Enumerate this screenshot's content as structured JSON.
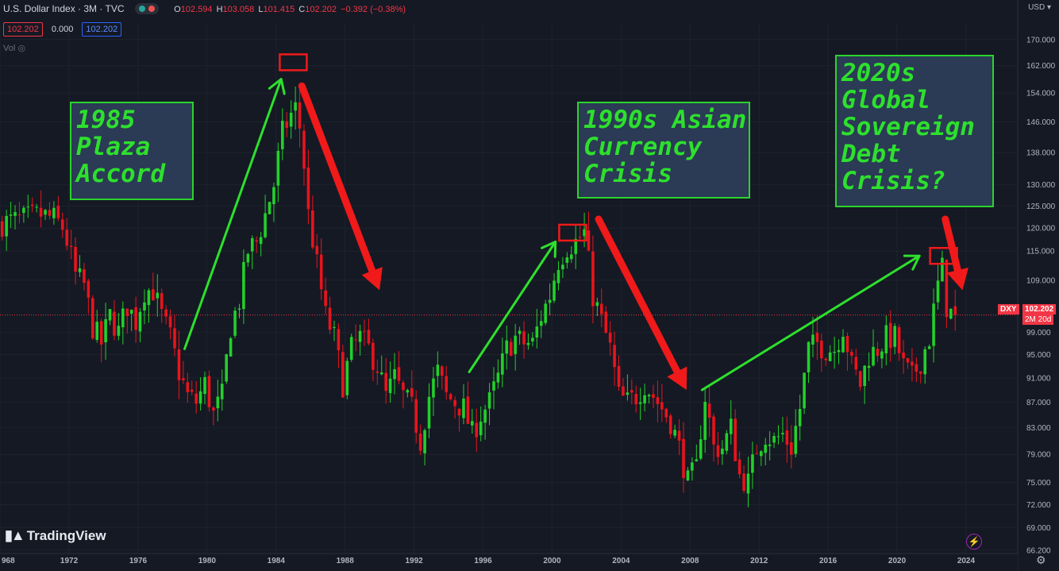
{
  "header": {
    "title": "U.S. Dollar Index · 3M · TVC",
    "ohlc": [
      {
        "k": "O",
        "v": "102.594"
      },
      {
        "k": "H",
        "v": "103.058"
      },
      {
        "k": "L",
        "v": "101.415"
      },
      {
        "k": "C",
        "v": "102.202"
      }
    ],
    "change": "−0.392 (−0.38%)",
    "price_box": "102.202",
    "spread": "0.000",
    "price_box2": "102.202",
    "vol_label": "Vol",
    "currency": "USD"
  },
  "logo": "TradingView",
  "price_badge": {
    "symbol": "DXY",
    "price": "102.202",
    "countdown": "2M 20d"
  },
  "annotations": {
    "plaza": "1985\nPlaza\nAccord",
    "asian": "1990s Asian\nCurrency\nCrisis",
    "debt": "2020s\nGlobal\nSovereign\nDebt\nCrisis?"
  },
  "colors": {
    "up": "#22d02a",
    "down": "#e8141c",
    "background": "#151924",
    "annotation_box": "#2b3a55",
    "annotation_text": "#2de02d"
  },
  "chart_data": {
    "type": "candlestick",
    "title": "U.S. Dollar Index · 3M · TVC",
    "scale": "log",
    "ylim": [
      65.5,
      175
    ],
    "xlim": [
      1968,
      2027
    ],
    "y_ticks": [
      "170.000",
      "162.000",
      "154.000",
      "146.000",
      "138.000",
      "130.000",
      "125.000",
      "120.000",
      "115.000",
      "109.000",
      "99.000",
      "95.000",
      "91.000",
      "87.000",
      "83.000",
      "79.000",
      "75.000",
      "72.000",
      "69.000",
      "66.200"
    ],
    "x_ticks": [
      "968",
      "1972",
      "1976",
      "1980",
      "1984",
      "1988",
      "1992",
      "1996",
      "2000",
      "2004",
      "2008",
      "2012",
      "2016",
      "2020",
      "2024"
    ],
    "anchors": [
      [
        1968.0,
        121
      ],
      [
        1969.5,
        122
      ],
      [
        1970.5,
        123
      ],
      [
        1971.3,
        122
      ],
      [
        1971.8,
        120
      ],
      [
        1972.5,
        110
      ],
      [
        1973.0,
        108
      ],
      [
        1973.5,
        100
      ],
      [
        1974.0,
        97
      ],
      [
        1974.5,
        102
      ],
      [
        1975.0,
        99
      ],
      [
        1975.5,
        104
      ],
      [
        1976.0,
        101
      ],
      [
        1976.5,
        107
      ],
      [
        1977.0,
        107
      ],
      [
        1977.5,
        102
      ],
      [
        1978.0,
        98
      ],
      [
        1978.5,
        92
      ],
      [
        1979.0,
        88
      ],
      [
        1979.5,
        87
      ],
      [
        1980.0,
        90
      ],
      [
        1980.5,
        85
      ],
      [
        1981.0,
        88
      ],
      [
        1981.5,
        100
      ],
      [
        1982.0,
        105
      ],
      [
        1982.5,
        115
      ],
      [
        1983.0,
        117
      ],
      [
        1983.5,
        123
      ],
      [
        1984.0,
        130
      ],
      [
        1984.5,
        143
      ],
      [
        1985.0,
        148
      ],
      [
        1985.3,
        150
      ],
      [
        1985.6,
        142
      ],
      [
        1986.0,
        123
      ],
      [
        1986.5,
        112
      ],
      [
        1987.0,
        102
      ],
      [
        1987.5,
        98
      ],
      [
        1988.0,
        90
      ],
      [
        1988.5,
        96
      ],
      [
        1989.0,
        98
      ],
      [
        1989.5,
        96
      ],
      [
        1990.0,
        93
      ],
      [
        1990.5,
        88
      ],
      [
        1991.0,
        91
      ],
      [
        1991.5,
        88
      ],
      [
        1992.0,
        86
      ],
      [
        1992.5,
        81
      ],
      [
        1993.0,
        88
      ],
      [
        1993.5,
        92
      ],
      [
        1994.0,
        88
      ],
      [
        1994.5,
        87
      ],
      [
        1995.0,
        86
      ],
      [
        1995.5,
        82
      ],
      [
        1996.0,
        85
      ],
      [
        1996.5,
        87
      ],
      [
        1997.0,
        91
      ],
      [
        1997.5,
        96
      ],
      [
        1998.0,
        98
      ],
      [
        1998.5,
        97
      ],
      [
        1999.0,
        97
      ],
      [
        1999.5,
        102
      ],
      [
        2000.0,
        106
      ],
      [
        2000.5,
        113
      ],
      [
        2001.0,
        116
      ],
      [
        2001.5,
        117
      ],
      [
        2002.0,
        119
      ],
      [
        2002.5,
        106
      ],
      [
        2003.0,
        101
      ],
      [
        2003.5,
        96
      ],
      [
        2004.0,
        88
      ],
      [
        2004.5,
        87
      ],
      [
        2005.0,
        88
      ],
      [
        2005.5,
        90
      ],
      [
        2006.0,
        88
      ],
      [
        2006.5,
        86
      ],
      [
        2007.0,
        84
      ],
      [
        2007.5,
        80
      ],
      [
        2008.0,
        75
      ],
      [
        2008.5,
        77
      ],
      [
        2008.8,
        84
      ],
      [
        2009.0,
        88
      ],
      [
        2009.5,
        80
      ],
      [
        2010.0,
        80
      ],
      [
        2010.5,
        83
      ],
      [
        2011.0,
        76
      ],
      [
        2011.5,
        75
      ],
      [
        2012.0,
        80
      ],
      [
        2012.5,
        82
      ],
      [
        2013.0,
        81
      ],
      [
        2013.5,
        82
      ],
      [
        2014.0,
        80
      ],
      [
        2014.5,
        86
      ],
      [
        2015.0,
        96
      ],
      [
        2015.5,
        97
      ],
      [
        2016.0,
        96
      ],
      [
        2016.5,
        96
      ],
      [
        2017.0,
        100
      ],
      [
        2017.5,
        93
      ],
      [
        2018.0,
        90
      ],
      [
        2018.5,
        95
      ],
      [
        2019.0,
        96
      ],
      [
        2019.5,
        98
      ],
      [
        2020.0,
        98
      ],
      [
        2020.5,
        93
      ],
      [
        2021.0,
        91
      ],
      [
        2021.5,
        94
      ],
      [
        2022.0,
        98
      ],
      [
        2022.5,
        108
      ],
      [
        2022.8,
        112
      ],
      [
        2023.0,
        104
      ],
      [
        2023.3,
        102.2
      ]
    ],
    "arrows": [
      {
        "color": "green",
        "from": [
          1978.7,
          96
        ],
        "to": [
          1984.3,
          158
        ]
      },
      {
        "color": "red",
        "from": [
          1985.5,
          156
        ],
        "to": [
          1990.0,
          107
        ]
      },
      {
        "color": "green",
        "from": [
          1995.2,
          92
        ],
        "to": [
          2000.2,
          117
        ]
      },
      {
        "color": "red",
        "from": [
          2002.7,
          122
        ],
        "to": [
          2007.8,
          89
        ]
      },
      {
        "color": "green",
        "from": [
          2008.7,
          89
        ],
        "to": [
          2021.3,
          114
        ]
      },
      {
        "color": "red",
        "from": [
          2022.8,
          122
        ],
        "to": [
          2023.8,
          107
        ]
      }
    ],
    "highlight_boxes": [
      {
        "at": [
          1985.0,
          163
        ]
      },
      {
        "at": [
          2001.2,
          119
        ]
      },
      {
        "at": [
          2022.7,
          114
        ]
      }
    ],
    "last_price": 102.202
  }
}
